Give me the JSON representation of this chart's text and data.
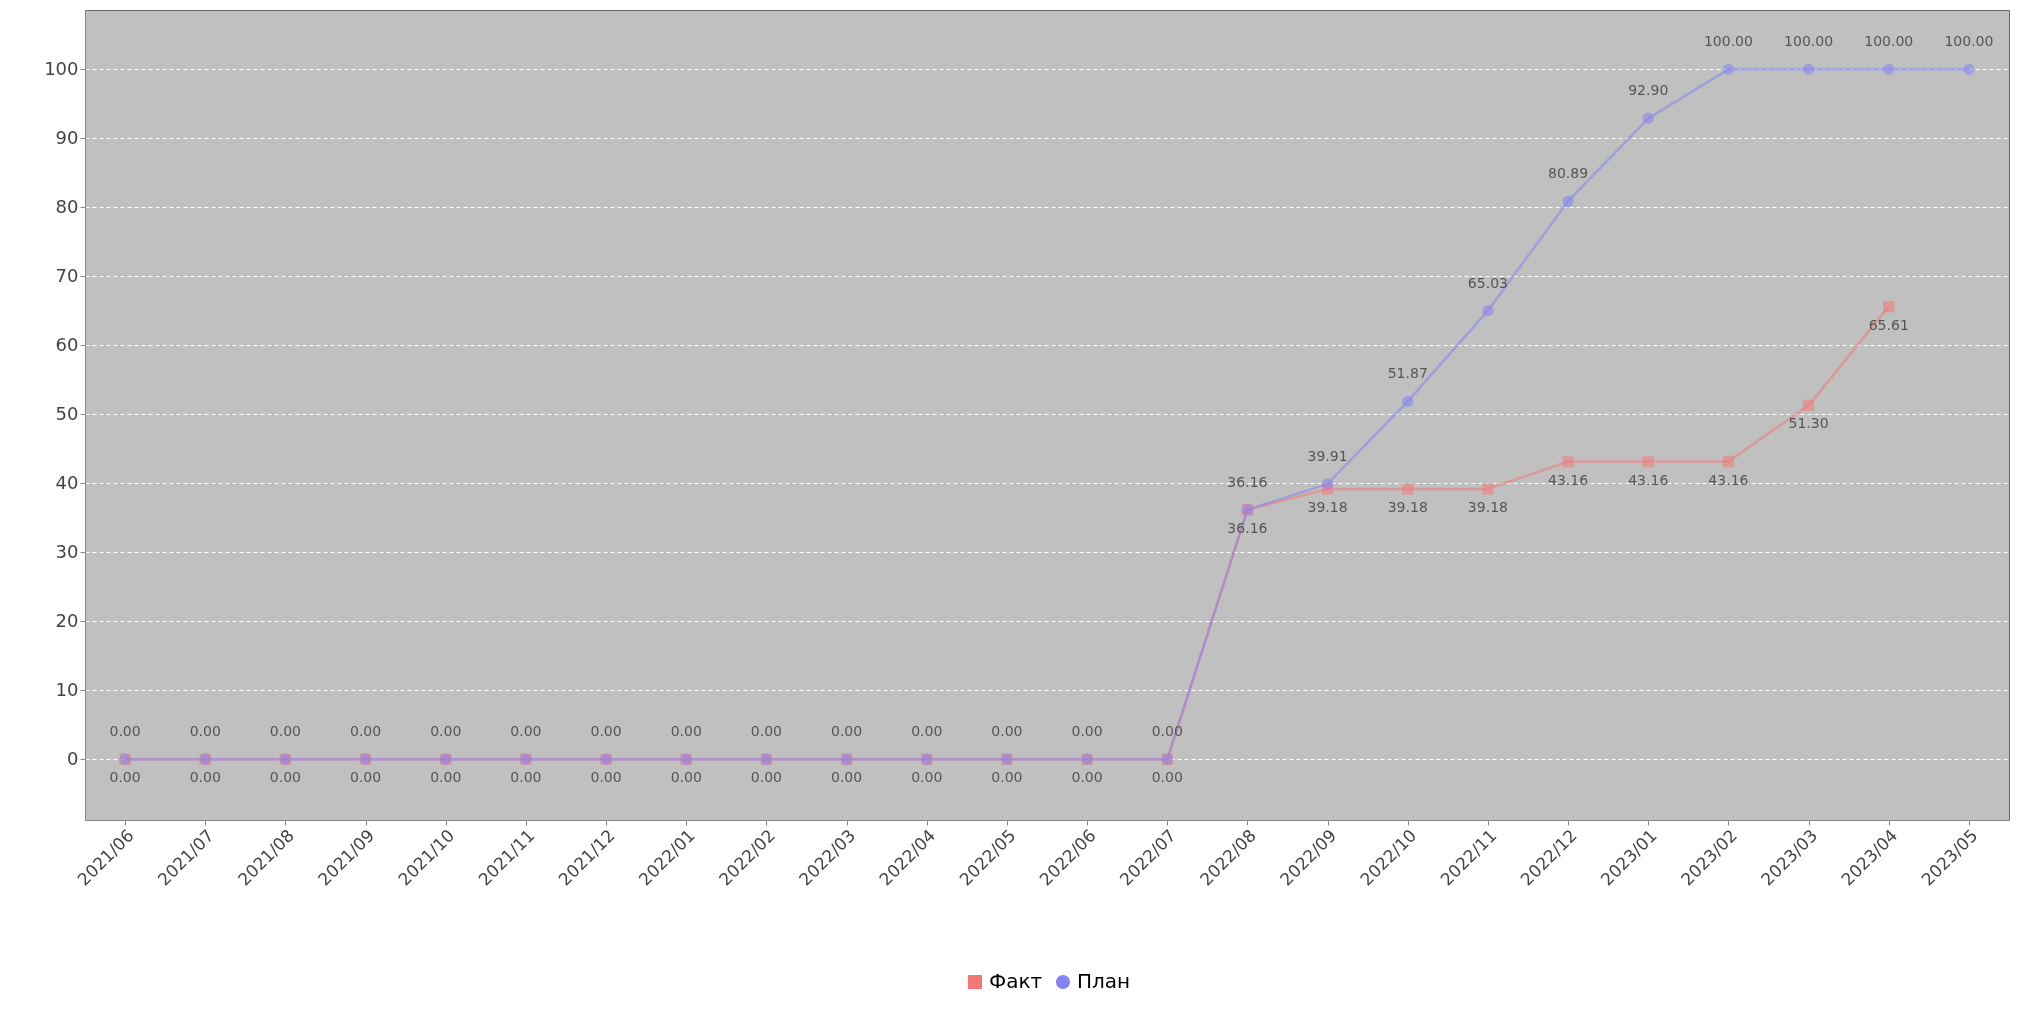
{
  "chart_data": {
    "type": "line",
    "categories": [
      "2021/06",
      "2021/07",
      "2021/08",
      "2021/09",
      "2021/10",
      "2021/11",
      "2021/12",
      "2022/01",
      "2022/02",
      "2022/03",
      "2022/04",
      "2022/05",
      "2022/06",
      "2022/07",
      "2022/08",
      "2022/09",
      "2022/10",
      "2022/11",
      "2022/12",
      "2023/01",
      "2023/02",
      "2023/03",
      "2023/04",
      "2023/05"
    ],
    "series": [
      {
        "name": "Факт",
        "color": "#f07878",
        "marker": "square",
        "values": [
          0,
          0,
          0,
          0,
          0,
          0,
          0,
          0,
          0,
          0,
          0,
          0,
          0,
          0,
          36.16,
          39.18,
          39.18,
          39.18,
          43.16,
          43.16,
          43.16,
          51.3,
          65.61,
          null
        ],
        "value_labels": [
          "0.00",
          "0.00",
          "0.00",
          "0.00",
          "0.00",
          "0.00",
          "0.00",
          "0.00",
          "0.00",
          "0.00",
          "0.00",
          "0.00",
          "0.00",
          "0.00",
          "36.16",
          "39.18",
          "39.18",
          "39.18",
          "43.16",
          "43.16",
          "43.16",
          "51.30",
          "65.61",
          null
        ]
      },
      {
        "name": "План",
        "color": "#8484f0",
        "marker": "circle",
        "values": [
          0,
          0,
          0,
          0,
          0,
          0,
          0,
          0,
          0,
          0,
          0,
          0,
          0,
          0,
          36.16,
          39.91,
          51.87,
          65.03,
          80.89,
          92.9,
          100,
          100,
          100,
          100
        ],
        "value_labels": [
          "0.00",
          "0.00",
          "0.00",
          "0.00",
          "0.00",
          "0.00",
          "0.00",
          "0.00",
          "0.00",
          "0.00",
          "0.00",
          "0.00",
          "0.00",
          "0.00",
          "36.16",
          "39.91",
          "51.87",
          "65.03",
          "80.89",
          "92.90",
          "100.00",
          "100.00",
          "100.00",
          "100.00"
        ]
      }
    ],
    "ylim": [
      -8.8,
      108.6
    ],
    "yticks": [
      0,
      10,
      20,
      30,
      40,
      50,
      60,
      70,
      80,
      90,
      100
    ],
    "grid": "y",
    "legend": "bottom"
  }
}
